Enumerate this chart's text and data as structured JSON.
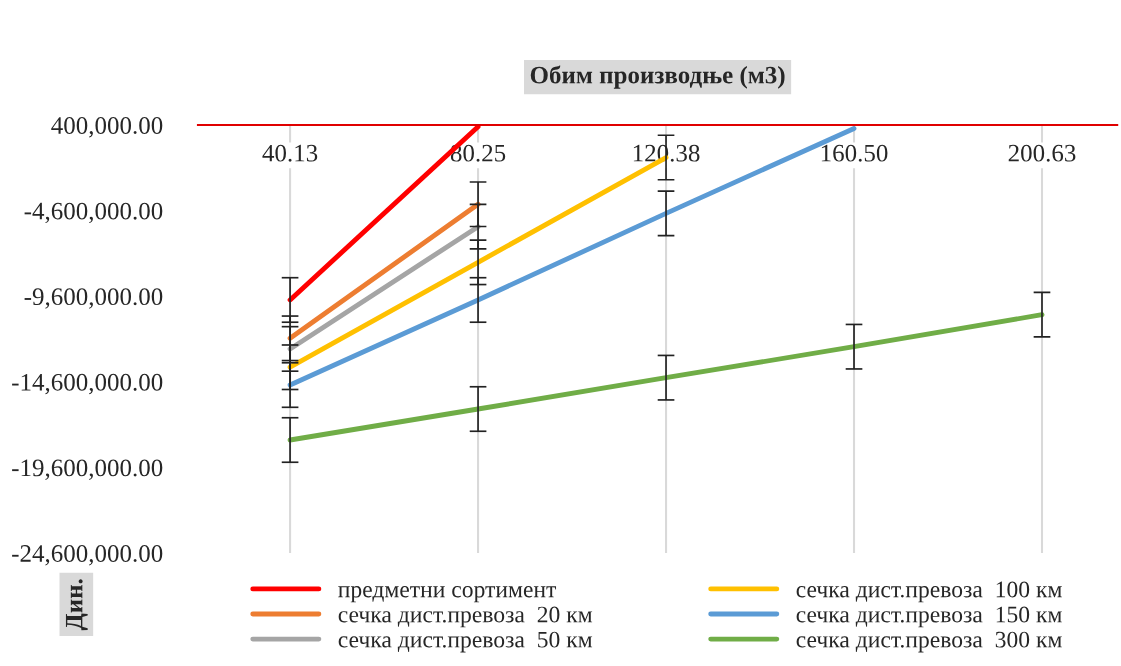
{
  "chart_data": {
    "type": "line",
    "title": "Обим производње (м3)",
    "ylabel": "Дин.",
    "categories": [
      "40.13",
      "80.25",
      "120.38",
      "160.50",
      "200.63"
    ],
    "ylim": [
      -24600000,
      400000
    ],
    "yticks": [
      {
        "value": 400000,
        "label": "400,000.00"
      },
      {
        "value": -4600000,
        "label": "-4,600,000.00"
      },
      {
        "value": -9600000,
        "label": "-9,600,000.00"
      },
      {
        "value": -14600000,
        "label": "-14,600,000.00"
      },
      {
        "value": -19600000,
        "label": "-19,600,000.00"
      },
      {
        "value": -24600000,
        "label": "-24,600,000.00"
      }
    ],
    "grid": "x",
    "legend": "bottom",
    "marker": "none",
    "line_style": "solid",
    "series": [
      {
        "name": "предметни сортимент",
        "color": "#ff0000",
        "values": [
          -9820000,
          300000,
          null,
          null,
          null
        ],
        "errors": [
          1300000,
          null,
          null,
          null,
          null
        ]
      },
      {
        "name": "сечка дист.превоза  20 км",
        "color": "#ed7d31",
        "values": [
          -12060000,
          -4230000,
          null,
          null,
          null
        ],
        "errors": [
          1300000,
          1300000,
          null,
          null,
          null
        ]
      },
      {
        "name": "сечка дист.превоза  50 км",
        "color": "#a5a5a5",
        "values": [
          -12680000,
          -5540000,
          null,
          null,
          null
        ],
        "errors": [
          1300000,
          1300000,
          null,
          null,
          null
        ]
      },
      {
        "name": "сечка дист.превоза  100 км",
        "color": "#ffc000",
        "values": [
          -13750000,
          -7620000,
          -1500000,
          null,
          null
        ],
        "errors": [
          1300000,
          1300000,
          1300000,
          null,
          null
        ]
      },
      {
        "name": "сечка дист.превоза  150 км",
        "color": "#5b9bd5",
        "values": [
          -14790000,
          -9820000,
          -4760000,
          200000,
          null
        ],
        "errors": [
          1300000,
          1300000,
          1300000,
          null,
          null
        ]
      },
      {
        "name": "сечка дист.превоза  300 км",
        "color": "#70ad47",
        "values": [
          -18000000,
          -16190000,
          -14360000,
          -12550000,
          -10680000
        ],
        "errors": [
          1300000,
          1300000,
          1300000,
          1300000,
          1300000
        ]
      }
    ]
  }
}
